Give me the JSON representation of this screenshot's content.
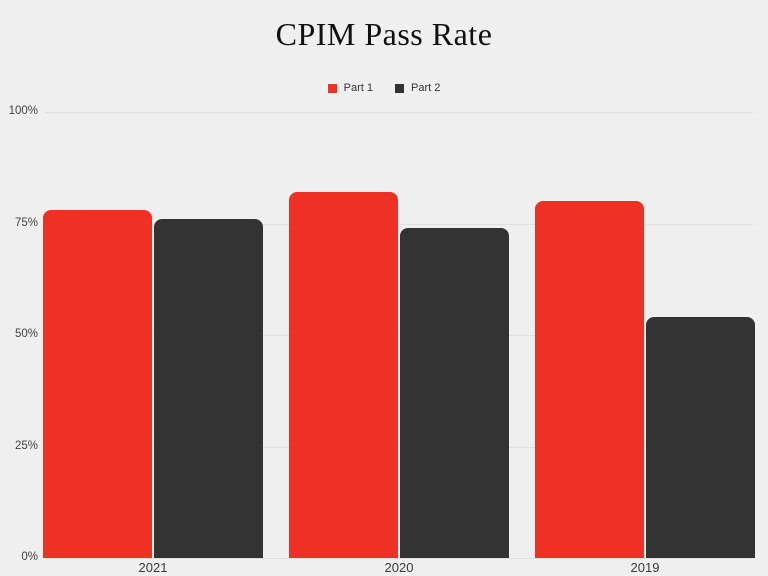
{
  "title": "CPIM Pass Rate",
  "colors": {
    "background": "#EFEFEF",
    "gridline": "#E0E0E0",
    "title_text": "#111111",
    "axis_text": "#424242",
    "part1": "#EE3124",
    "part2": "#333333"
  },
  "legend": [
    {
      "label": "Part 1",
      "color": "#EE3124"
    },
    {
      "label": "Part 2",
      "color": "#333333"
    }
  ],
  "chart_data": {
    "type": "bar",
    "title": "CPIM Pass Rate",
    "categories": [
      "2021",
      "2020",
      "2019"
    ],
    "series": [
      {
        "name": "Part 1",
        "color": "#EE3124",
        "values": [
          78,
          82,
          80
        ]
      },
      {
        "name": "Part 2",
        "color": "#333333",
        "values": [
          76,
          74,
          54
        ]
      }
    ],
    "xlabel": "",
    "ylabel": "",
    "ylim": [
      0,
      100
    ],
    "ytick_interval": 25,
    "ytick_labels": [
      "0%",
      "25%",
      "50%",
      "75%",
      "100%"
    ],
    "grid": true,
    "legend_position": "top-center",
    "value_format": "percent"
  }
}
